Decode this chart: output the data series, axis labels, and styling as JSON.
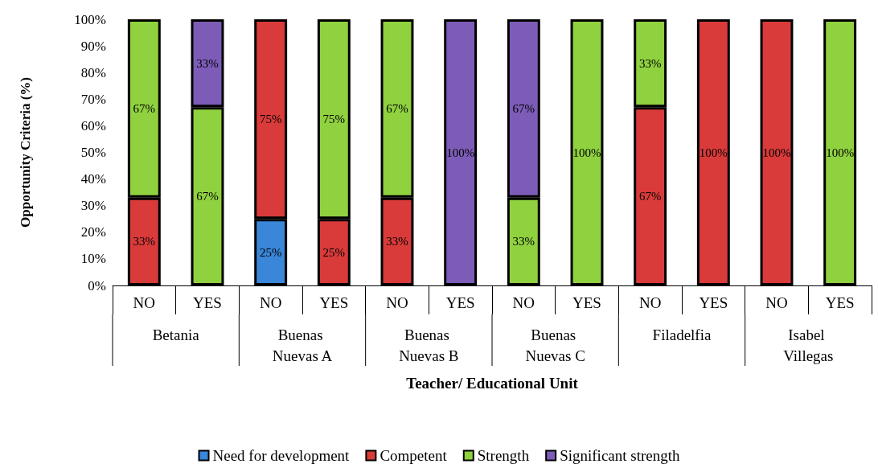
{
  "chart_data": {
    "type": "bar",
    "stacked": true,
    "categories": [
      "NO",
      "YES",
      "NO",
      "YES",
      "NO",
      "YES",
      "NO",
      "YES",
      "NO",
      "YES",
      "NO",
      "YES"
    ],
    "annotations": [
      "Betania",
      "Buenas Nuevas A",
      "Buenas Nuevas B",
      "Buenas Nuevas C",
      "Filadelfia",
      "Isabel Villegas"
    ],
    "xlabel": "Teacher/ Educational Unit",
    "ylabel": "Opportunity Criteria (%)",
    "ylim": [
      0,
      100
    ],
    "yticks": [
      {
        "value": 0,
        "label": "0%"
      },
      {
        "value": 10,
        "label": "10%"
      },
      {
        "value": 20,
        "label": "20%"
      },
      {
        "value": 30,
        "label": "30%"
      },
      {
        "value": 40,
        "label": "40%"
      },
      {
        "value": 50,
        "label": "50%"
      },
      {
        "value": 60,
        "label": "60%"
      },
      {
        "value": 70,
        "label": "70%"
      },
      {
        "value": 80,
        "label": "80%"
      },
      {
        "value": 90,
        "label": "90%"
      },
      {
        "value": 100,
        "label": "100%"
      }
    ],
    "grid": false,
    "legend": "bottom",
    "series": [
      {
        "name": "Need for development",
        "color": "#3a86d8",
        "values": [
          null,
          null,
          25,
          null,
          null,
          null,
          null,
          null,
          null,
          null,
          null,
          null
        ],
        "value_labels": [
          null,
          null,
          "25%",
          null,
          null,
          null,
          null,
          null,
          null,
          null,
          null,
          null
        ]
      },
      {
        "name": "Competent",
        "color": "#d93a3a",
        "values": [
          33,
          null,
          75,
          25,
          33,
          null,
          null,
          null,
          67,
          100,
          100,
          null
        ],
        "value_labels": [
          "33%",
          null,
          "75%",
          "25%",
          "33%",
          null,
          null,
          null,
          "67%",
          "100%",
          "100%",
          null
        ]
      },
      {
        "name": "Strength",
        "color": "#8fd13f",
        "values": [
          67,
          67,
          null,
          75,
          67,
          null,
          33,
          100,
          33,
          null,
          null,
          100
        ],
        "value_labels": [
          "67%",
          "67%",
          null,
          "75%",
          "67%",
          null,
          "33%",
          "100%",
          "33%",
          null,
          null,
          "100%"
        ]
      },
      {
        "name": "Significant strength",
        "color": "#7d5cb8",
        "values": [
          null,
          33,
          null,
          null,
          null,
          100,
          67,
          null,
          null,
          null,
          null,
          null
        ],
        "value_labels": [
          null,
          "33%",
          null,
          null,
          null,
          "100%",
          "67%",
          null,
          null,
          null,
          null,
          null
        ]
      }
    ]
  }
}
